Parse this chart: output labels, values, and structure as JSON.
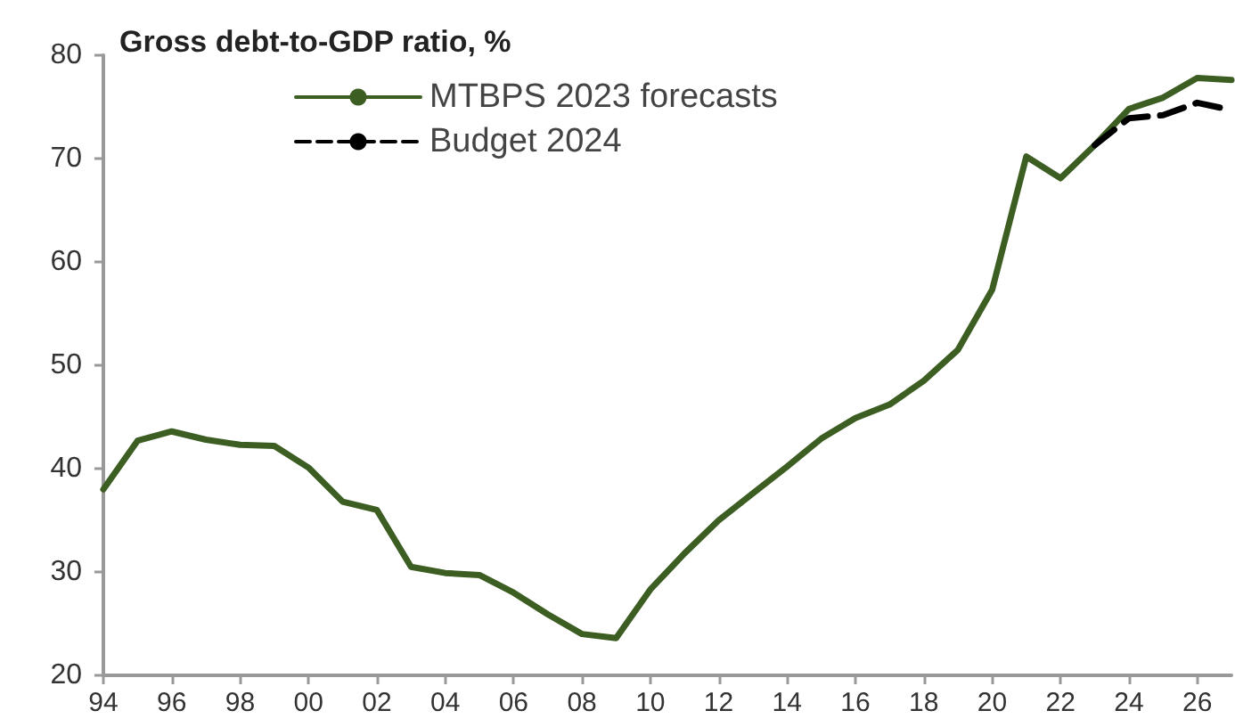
{
  "chart_data": {
    "type": "line",
    "title": "Gross debt-to-GDP ratio, %",
    "x": [
      1994,
      1995,
      1996,
      1997,
      1998,
      1999,
      2000,
      2001,
      2002,
      2003,
      2004,
      2005,
      2006,
      2007,
      2008,
      2009,
      2010,
      2011,
      2012,
      2013,
      2014,
      2015,
      2016,
      2017,
      2018,
      2019,
      2020,
      2021,
      2022,
      2023,
      2024,
      2025,
      2026,
      2027
    ],
    "series": [
      {
        "name": "MTBPS 2023 forecasts",
        "color": "#3d5e22",
        "line_style": "solid",
        "values": [
          38,
          42.7,
          43.6,
          42.8,
          42.3,
          42.2,
          40.1,
          36.8,
          36.0,
          30.5,
          29.9,
          29.7,
          28.0,
          25.9,
          24.0,
          23.6,
          28.3,
          31.8,
          35.0,
          37.6,
          40.2,
          42.9,
          44.9,
          46.2,
          48.5,
          51.5,
          57.3,
          70.2,
          68.1,
          71.3,
          74.8,
          75.9,
          77.8,
          77.6
        ]
      },
      {
        "name": "Budget 2024",
        "color": "#000000",
        "line_style": "dashed",
        "x": [
          2023,
          2024,
          2025,
          2026,
          2027
        ],
        "values": [
          71.3,
          73.9,
          74.2,
          75.4,
          74.7
        ]
      }
    ],
    "xlim": [
      1994,
      2027
    ],
    "xticks": [
      {
        "value": 1994,
        "label": "94"
      },
      {
        "value": 1996,
        "label": "96"
      },
      {
        "value": 1998,
        "label": "98"
      },
      {
        "value": 2000,
        "label": "00"
      },
      {
        "value": 2002,
        "label": "02"
      },
      {
        "value": 2004,
        "label": "04"
      },
      {
        "value": 2006,
        "label": "06"
      },
      {
        "value": 2008,
        "label": "08"
      },
      {
        "value": 2010,
        "label": "10"
      },
      {
        "value": 2012,
        "label": "12"
      },
      {
        "value": 2014,
        "label": "14"
      },
      {
        "value": 2016,
        "label": "16"
      },
      {
        "value": 2018,
        "label": "18"
      },
      {
        "value": 2020,
        "label": "20"
      },
      {
        "value": 2022,
        "label": "22"
      },
      {
        "value": 2024,
        "label": "24"
      },
      {
        "value": 2026,
        "label": "26"
      }
    ],
    "ylim": [
      20,
      80
    ],
    "yticks": [
      20,
      30,
      40,
      50,
      60,
      70,
      80
    ],
    "grid": false,
    "legend": "top left",
    "marker": "none"
  }
}
